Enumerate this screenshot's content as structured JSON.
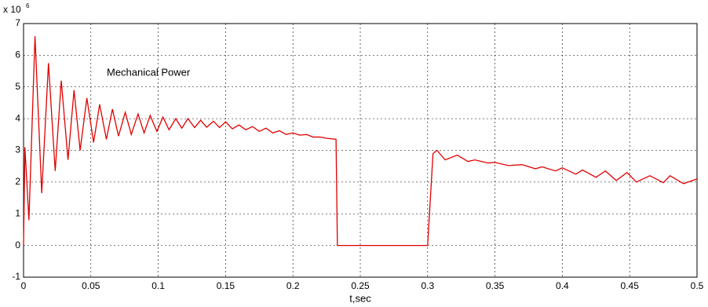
{
  "chart_data": {
    "type": "line",
    "annotation": "Mechanical Power",
    "xlabel": "t,sec",
    "y_multiplier": {
      "base": "x 10",
      "exponent": "6"
    },
    "xlim": [
      0,
      0.5
    ],
    "ylim": [
      -1,
      7
    ],
    "xticks": [
      0,
      0.05,
      0.1,
      0.15,
      0.2,
      0.25,
      0.3,
      0.35,
      0.4,
      0.45,
      0.5
    ],
    "yticks": [
      -1,
      0,
      1,
      2,
      3,
      4,
      5,
      6,
      7
    ],
    "grid": true,
    "x": [
      0,
      0.001,
      0.004,
      0.0085,
      0.0135,
      0.0185,
      0.0235,
      0.028,
      0.033,
      0.0375,
      0.042,
      0.047,
      0.052,
      0.0565,
      0.0615,
      0.066,
      0.0705,
      0.0755,
      0.08,
      0.085,
      0.0895,
      0.094,
      0.099,
      0.1035,
      0.108,
      0.113,
      0.1175,
      0.122,
      0.127,
      0.1315,
      0.136,
      0.141,
      0.1455,
      0.15,
      0.155,
      0.16,
      0.165,
      0.17,
      0.175,
      0.18,
      0.185,
      0.19,
      0.195,
      0.2,
      0.205,
      0.21,
      0.215,
      0.22,
      0.225,
      0.232,
      0.233,
      0.3,
      0.304,
      0.307,
      0.313,
      0.322,
      0.33,
      0.335,
      0.345,
      0.35,
      0.36,
      0.37,
      0.38,
      0.385,
      0.395,
      0.4,
      0.41,
      0.415,
      0.425,
      0.432,
      0.44,
      0.448,
      0.455,
      0.465,
      0.475,
      0.48,
      0.49,
      0.5
    ],
    "series": [
      {
        "name": "Mechanical Power",
        "color": "#e00000",
        "values": [
          0,
          3.1,
          0.8,
          6.6,
          1.65,
          5.75,
          2.35,
          5.2,
          2.7,
          4.9,
          3.0,
          4.65,
          3.25,
          4.45,
          3.35,
          4.3,
          3.45,
          4.2,
          3.5,
          4.15,
          3.55,
          4.1,
          3.6,
          4.05,
          3.65,
          4.0,
          3.7,
          4.0,
          3.72,
          3.95,
          3.73,
          3.92,
          3.72,
          3.9,
          3.68,
          3.8,
          3.65,
          3.75,
          3.6,
          3.7,
          3.55,
          3.62,
          3.5,
          3.55,
          3.48,
          3.5,
          3.42,
          3.42,
          3.38,
          3.35,
          0,
          0,
          2.9,
          3.0,
          2.7,
          2.85,
          2.65,
          2.7,
          2.6,
          2.62,
          2.52,
          2.55,
          2.42,
          2.48,
          2.35,
          2.45,
          2.25,
          2.38,
          2.15,
          2.35,
          2.05,
          2.3,
          2.0,
          2.2,
          1.98,
          2.2,
          1.95,
          2.1
        ]
      }
    ]
  }
}
